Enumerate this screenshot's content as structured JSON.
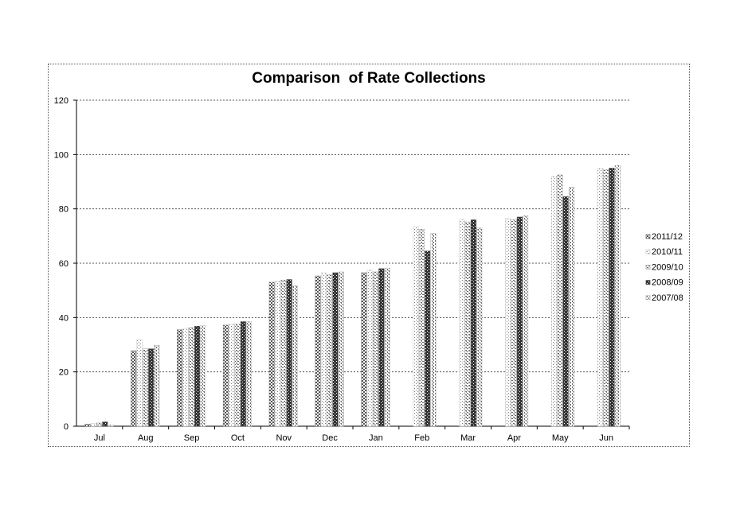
{
  "chart_data": {
    "type": "bar",
    "title": "Comparison  of Rate Collections",
    "xlabel": "",
    "ylabel": "",
    "ylim": [
      0,
      120
    ],
    "yticks": [
      0,
      20,
      40,
      60,
      80,
      100,
      120
    ],
    "grid": true,
    "legend_position": "right",
    "categories": [
      "Jul",
      "Aug",
      "Sep",
      "Oct",
      "Nov",
      "Dec",
      "Jan",
      "Feb",
      "Mar",
      "Apr",
      "May",
      "Jun"
    ],
    "series": [
      {
        "name": "2011/12",
        "color": "#707070",
        "values": [
          0.8,
          27.8,
          35.5,
          37.2,
          53.0,
          55.3,
          56.5,
          null,
          null,
          null,
          null,
          null
        ]
      },
      {
        "name": "2010/11",
        "color": "#c8c8c8",
        "values": [
          1.0,
          32.0,
          36.0,
          37.5,
          53.5,
          56.5,
          57.5,
          73.5,
          76.0,
          76.5,
          92.0,
          95.0
        ]
      },
      {
        "name": "2009/10",
        "color": "#a8a8a8",
        "values": [
          1.2,
          28.5,
          36.3,
          37.7,
          53.8,
          55.8,
          56.8,
          72.5,
          75.2,
          76.0,
          92.5,
          94.5
        ]
      },
      {
        "name": "2008/09",
        "color": "#505050",
        "values": [
          1.6,
          28.5,
          36.8,
          38.5,
          54.0,
          56.5,
          58.0,
          64.5,
          76.0,
          77.0,
          84.5,
          95.0
        ]
      },
      {
        "name": "2007/08",
        "color": "#b4b4b4",
        "values": [
          0.5,
          29.8,
          37.0,
          38.5,
          51.8,
          56.8,
          58.2,
          71.0,
          73.0,
          77.5,
          88.0,
          96.0
        ]
      }
    ]
  }
}
